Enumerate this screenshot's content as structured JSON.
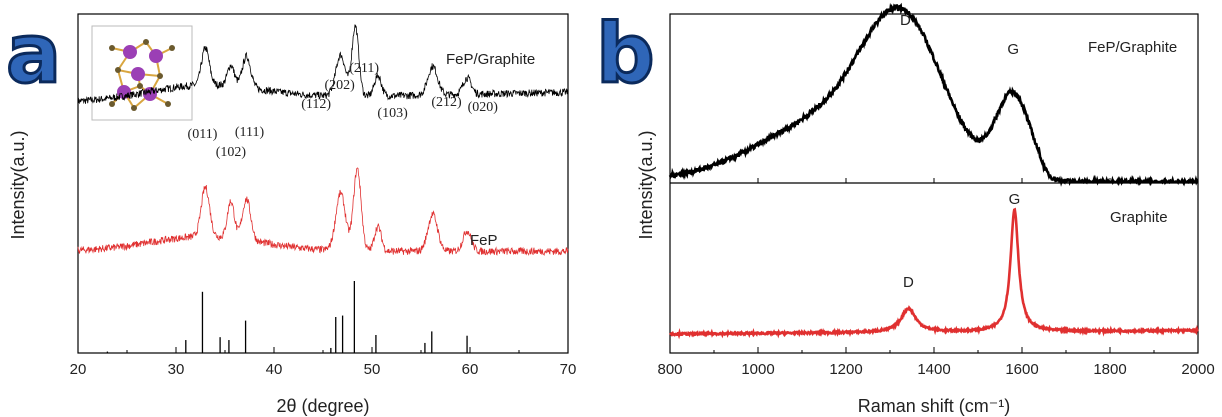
{
  "colors": {
    "black_trace": "#000000",
    "red_trace": "#e03030",
    "panel_letter_fill": "#2f66b8",
    "panel_letter_stroke": "#0b2a5c",
    "atom": "#9b3fb5",
    "bond": "#d9a640"
  },
  "chart_data": [
    {
      "type": "line",
      "panel": "a",
      "xlabel": "2θ (degree)",
      "ylabel": "Intensity(a.u.)",
      "xlim": [
        20,
        70
      ],
      "xticks": [
        20,
        30,
        40,
        50,
        60,
        70
      ],
      "inset": "crystal-structure",
      "series": [
        {
          "name": "FeP/Graphite",
          "color": "#000000",
          "offset": 0.74,
          "peaks": [
            [
              33,
              0.45,
              0.55
            ],
            [
              35.6,
              0.25,
              0.5
            ],
            [
              37.2,
              0.38,
              0.6
            ],
            [
              46.8,
              0.5,
              0.7
            ],
            [
              48.3,
              0.85,
              0.5
            ],
            [
              50.6,
              0.25,
              0.5
            ],
            [
              56.2,
              0.35,
              0.7
            ],
            [
              59.7,
              0.2,
              0.6
            ]
          ]
        },
        {
          "name": "FeP",
          "color": "#e03030",
          "offset": 0.3,
          "peaks": [
            [
              33,
              0.6,
              0.6
            ],
            [
              35.6,
              0.45,
              0.5
            ],
            [
              37.2,
              0.5,
              0.6
            ],
            [
              46.8,
              0.7,
              0.7
            ],
            [
              48.5,
              1.0,
              0.55
            ],
            [
              50.6,
              0.3,
              0.5
            ],
            [
              56.2,
              0.45,
              0.7
            ],
            [
              59.7,
              0.25,
              0.6
            ]
          ]
        }
      ],
      "peak_labels": [
        {
          "text": "(011)",
          "x": 32.7
        },
        {
          "text": "(102)",
          "x": 35.6
        },
        {
          "text": "(111)",
          "x": 37.5
        },
        {
          "text": "(112)",
          "x": 44.3
        },
        {
          "text": "(202)",
          "x": 46.7
        },
        {
          "text": "(211)",
          "x": 49.2
        },
        {
          "text": "(103)",
          "x": 52.1
        },
        {
          "text": "(212)",
          "x": 57.6
        },
        {
          "text": "(020)",
          "x": 61.3
        }
      ],
      "reference_lines": [
        {
          "x": 31.0,
          "h": 0.18
        },
        {
          "x": 32.7,
          "h": 0.85
        },
        {
          "x": 34.5,
          "h": 0.22
        },
        {
          "x": 35.4,
          "h": 0.18
        },
        {
          "x": 37.1,
          "h": 0.45
        },
        {
          "x": 45.8,
          "h": 0.07
        },
        {
          "x": 46.3,
          "h": 0.5
        },
        {
          "x": 47.0,
          "h": 0.52
        },
        {
          "x": 48.2,
          "h": 1.0
        },
        {
          "x": 50.4,
          "h": 0.25
        },
        {
          "x": 55.4,
          "h": 0.14
        },
        {
          "x": 56.1,
          "h": 0.3
        },
        {
          "x": 59.7,
          "h": 0.24
        },
        {
          "x": 23.0,
          "h": 0.02
        }
      ]
    },
    {
      "type": "line",
      "panel": "b",
      "xlabel": "Raman shift (cm⁻¹)",
      "ylabel": "Intensity(a.u.)",
      "xlim": [
        800,
        2000
      ],
      "xticks": [
        800,
        1000,
        1200,
        1400,
        1600,
        1800,
        2000
      ],
      "subplots": [
        {
          "name": "FeP/Graphite",
          "color": "#000000",
          "peaks": [
            {
              "label": "D",
              "x": 1335
            },
            {
              "label": "G",
              "x": 1580
            }
          ]
        },
        {
          "name": "Graphite",
          "color": "#e03030",
          "peaks": [
            {
              "label": "D",
              "x": 1342
            },
            {
              "label": "G",
              "x": 1583
            }
          ]
        }
      ]
    }
  ]
}
